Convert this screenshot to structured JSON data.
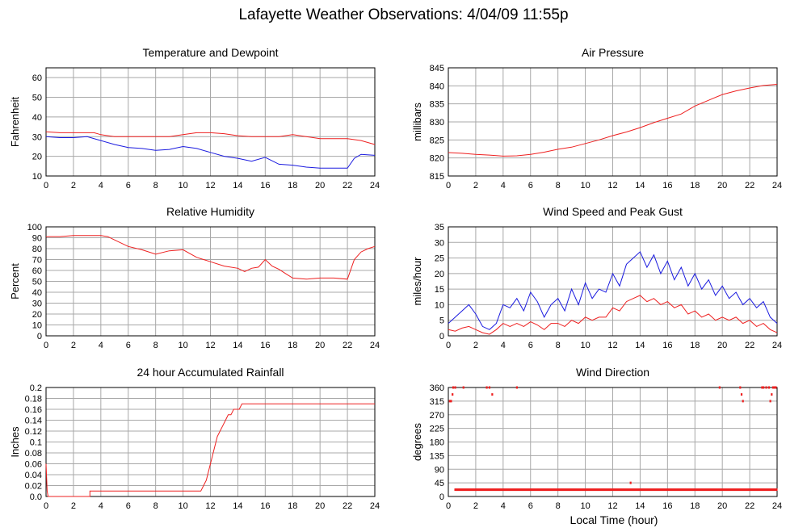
{
  "title": "Lafayette Weather Observations: 4/04/09 11:55p",
  "x_label": "Local Time (hour)",
  "colors": {
    "red": "#ee2020",
    "blue": "#1a1adf",
    "grid": "#a8a8a8"
  },
  "chart_data": [
    {
      "id": "temp",
      "type": "line",
      "title": "Temperature and Dewpoint",
      "ylabel": "Fahrenheit",
      "xlim": [
        0,
        24
      ],
      "ylim": [
        10,
        65
      ],
      "xticks": [
        0,
        2,
        4,
        6,
        8,
        10,
        12,
        14,
        16,
        18,
        20,
        22,
        24
      ],
      "yticks": [
        10,
        20,
        30,
        40,
        50,
        60
      ],
      "ytick_labels": [
        "10",
        "20",
        "30",
        "40",
        "50",
        "60"
      ],
      "series": [
        {
          "color": "red",
          "render": "line",
          "x": [
            0,
            1,
            2,
            3,
            3.5,
            4,
            5,
            6,
            7,
            8,
            9,
            10,
            11,
            12,
            13,
            14,
            15,
            16,
            17,
            18,
            19,
            20,
            21,
            22,
            23,
            24
          ],
          "y": [
            32.5,
            32,
            32,
            32,
            32,
            31,
            30,
            30,
            30,
            30,
            30,
            31,
            32,
            32,
            31.5,
            30.5,
            30,
            30,
            30,
            31,
            30,
            29,
            29,
            29,
            28,
            26
          ]
        },
        {
          "color": "blue",
          "render": "line",
          "x": [
            0,
            1,
            2,
            3,
            4,
            5,
            6,
            7,
            8,
            9,
            10,
            11,
            12,
            13,
            14,
            15,
            16,
            17,
            18,
            19,
            20,
            21,
            22,
            22.5,
            23,
            24
          ],
          "y": [
            30,
            29.5,
            29.5,
            30,
            28,
            26,
            24.5,
            24,
            23,
            23.5,
            25,
            24,
            22,
            20,
            19,
            17.5,
            19.5,
            16,
            15.5,
            14.5,
            14,
            14,
            14,
            19,
            21,
            20.5
          ]
        }
      ]
    },
    {
      "id": "pressure",
      "type": "line",
      "title": "Air Pressure",
      "ylabel": "millibars",
      "xlim": [
        0,
        24
      ],
      "ylim": [
        815,
        845
      ],
      "xticks": [
        0,
        2,
        4,
        6,
        8,
        10,
        12,
        14,
        16,
        18,
        20,
        22,
        24
      ],
      "yticks": [
        815,
        820,
        825,
        830,
        835,
        840,
        845
      ],
      "ytick_labels": [
        "815",
        "820",
        "825",
        "830",
        "835",
        "840",
        "845"
      ],
      "series": [
        {
          "color": "red",
          "render": "line",
          "x": [
            0,
            1,
            2,
            3,
            4,
            5,
            6,
            7,
            8,
            9,
            10,
            11,
            12,
            13,
            14,
            15,
            16,
            17,
            18,
            19,
            20,
            21,
            22,
            23,
            24
          ],
          "y": [
            821.5,
            821.3,
            821,
            820.8,
            820.5,
            820.6,
            821,
            821.6,
            822.4,
            823,
            824,
            825,
            826.2,
            827.2,
            828.4,
            829.8,
            831,
            832.2,
            834.4,
            836,
            837.6,
            838.6,
            839.4,
            840.1,
            840.4
          ]
        }
      ]
    },
    {
      "id": "humidity",
      "type": "line",
      "title": "Relative Humidity",
      "ylabel": "Percent",
      "xlim": [
        0,
        24
      ],
      "ylim": [
        0,
        100
      ],
      "xticks": [
        0,
        2,
        4,
        6,
        8,
        10,
        12,
        14,
        16,
        18,
        20,
        22,
        24
      ],
      "yticks": [
        0,
        10,
        20,
        30,
        40,
        50,
        60,
        70,
        80,
        90,
        100
      ],
      "ytick_labels": [
        "0",
        "10",
        "20",
        "30",
        "40",
        "50",
        "60",
        "70",
        "80",
        "90",
        "100"
      ],
      "series": [
        {
          "color": "red",
          "render": "line",
          "x": [
            0,
            1,
            2,
            3,
            4,
            4.5,
            5,
            6,
            7,
            8,
            9,
            10,
            11,
            12,
            13,
            14,
            14.5,
            15,
            15.5,
            16,
            16.5,
            17,
            17.5,
            18,
            19,
            20,
            21,
            22,
            22.5,
            23,
            23.5,
            24
          ],
          "y": [
            91,
            91,
            92,
            92,
            92,
            91,
            88,
            82,
            79,
            75,
            78,
            79,
            72,
            68,
            64,
            62,
            59,
            62,
            63,
            70,
            64,
            61,
            57,
            53,
            52,
            53,
            53,
            52,
            70,
            77,
            80,
            82
          ]
        }
      ]
    },
    {
      "id": "wind",
      "type": "line",
      "title": "Wind Speed and Peak Gust",
      "ylabel": "miles/hour",
      "xlim": [
        0,
        24
      ],
      "ylim": [
        0,
        35
      ],
      "xticks": [
        0,
        2,
        4,
        6,
        8,
        10,
        12,
        14,
        16,
        18,
        20,
        22,
        24
      ],
      "yticks": [
        0,
        5,
        10,
        15,
        20,
        25,
        30,
        35
      ],
      "ytick_labels": [
        "0",
        "5",
        "10",
        "15",
        "20",
        "25",
        "30",
        "35"
      ],
      "series": [
        {
          "color": "blue",
          "render": "line",
          "x": [
            0,
            0.5,
            1,
            1.5,
            2,
            2.5,
            3,
            3.5,
            4,
            4.5,
            5,
            5.5,
            6,
            6.5,
            7,
            7.5,
            8,
            8.5,
            9,
            9.5,
            10,
            10.5,
            11,
            11.5,
            12,
            12.5,
            13,
            13.5,
            14,
            14.5,
            15,
            15.5,
            16,
            16.5,
            17,
            17.5,
            18,
            18.5,
            19,
            19.5,
            20,
            20.5,
            21,
            21.5,
            22,
            22.5,
            23,
            23.5,
            24
          ],
          "y": [
            4,
            6,
            8,
            10,
            7,
            3,
            2,
            4,
            10,
            9,
            12,
            8,
            14,
            11,
            6,
            10,
            12,
            8,
            15,
            10,
            17,
            12,
            15,
            14,
            20,
            16,
            23,
            25,
            27,
            22,
            26,
            20,
            24,
            18,
            22,
            16,
            20,
            15,
            18,
            13,
            16,
            12,
            14,
            10,
            12,
            9,
            11,
            6,
            4
          ]
        },
        {
          "color": "red",
          "render": "line",
          "x": [
            0,
            0.5,
            1,
            1.5,
            2,
            2.5,
            3,
            3.5,
            4,
            4.5,
            5,
            5.5,
            6,
            6.5,
            7,
            7.5,
            8,
            8.5,
            9,
            9.5,
            10,
            10.5,
            11,
            11.5,
            12,
            12.5,
            13,
            13.5,
            14,
            14.5,
            15,
            15.5,
            16,
            16.5,
            17,
            17.5,
            18,
            18.5,
            19,
            19.5,
            20,
            20.5,
            21,
            21.5,
            22,
            22.5,
            23,
            23.5,
            24
          ],
          "y": [
            2,
            1.5,
            2.5,
            3,
            2,
            1,
            0.5,
            2,
            4,
            3,
            4,
            3,
            4.5,
            3.5,
            2,
            4,
            4,
            3,
            5,
            4,
            6,
            5,
            6,
            6,
            9,
            8,
            11,
            12,
            13,
            11,
            12,
            10,
            11,
            9,
            10,
            7,
            8,
            6,
            7,
            5,
            6,
            5,
            6,
            4,
            5,
            3,
            4,
            2,
            1
          ]
        }
      ]
    },
    {
      "id": "rain",
      "type": "line",
      "title": "24 hour Accumulated Rainfall",
      "ylabel": "Inches",
      "xlim": [
        0,
        24
      ],
      "ylim": [
        0,
        0.2
      ],
      "xticks": [
        0,
        2,
        4,
        6,
        8,
        10,
        12,
        14,
        16,
        18,
        20,
        22,
        24
      ],
      "yticks": [
        0,
        0.02,
        0.04,
        0.06,
        0.08,
        0.1,
        0.12,
        0.14,
        0.16,
        0.18,
        0.2
      ],
      "ytick_labels": [
        "0.0",
        "0.02",
        "0.04",
        "0.06",
        "0.08",
        "0.1",
        "0.12",
        "0.14",
        "0.16",
        "0.18",
        "0.2"
      ],
      "series": [
        {
          "color": "red",
          "render": "line",
          "x": [
            0,
            0.08,
            0.15,
            3.2,
            3.2,
            11.3,
            11.5,
            11.7,
            11.9,
            12.1,
            12.3,
            12.5,
            12.7,
            12.9,
            13.1,
            13.3,
            13.5,
            13.7,
            13.9,
            14.1,
            14.3,
            14.3,
            24
          ],
          "y": [
            0.06,
            0.01,
            0,
            0,
            0.01,
            0.01,
            0.02,
            0.03,
            0.05,
            0.07,
            0.09,
            0.11,
            0.12,
            0.13,
            0.14,
            0.15,
            0.15,
            0.16,
            0.16,
            0.16,
            0.17,
            0.17,
            0.17
          ]
        }
      ]
    },
    {
      "id": "direction",
      "type": "scatter",
      "title": "Wind Direction",
      "ylabel": "degrees",
      "xlim": [
        0,
        24
      ],
      "ylim": [
        0,
        360
      ],
      "xticks": [
        0,
        2,
        4,
        6,
        8,
        10,
        12,
        14,
        16,
        18,
        20,
        22,
        24
      ],
      "yticks": [
        0,
        45,
        90,
        135,
        180,
        225,
        270,
        315,
        360
      ],
      "ytick_labels": [
        "0",
        "45",
        "90",
        "135",
        "180",
        "225",
        "270",
        "315",
        "360"
      ],
      "series": [
        {
          "color": "red",
          "render": "points",
          "band": {
            "from": 0.5,
            "to": 24,
            "step": 0.06,
            "y": 22.5
          },
          "x": [
            0.1,
            0.2,
            0.3,
            0.35,
            0.5,
            1.1,
            2.8,
            3.0,
            3.2,
            5.0,
            13.3,
            19.8,
            21.3,
            21.4,
            21.5,
            22.9,
            23.0,
            23.2,
            23.4,
            23.5,
            23.6,
            23.7,
            23.8,
            23.9
          ],
          "y": [
            315,
            315,
            337,
            360,
            360,
            360,
            360,
            360,
            337,
            360,
            45,
            360,
            360,
            337,
            315,
            360,
            360,
            360,
            360,
            315,
            337,
            360,
            360,
            360
          ]
        }
      ]
    }
  ]
}
